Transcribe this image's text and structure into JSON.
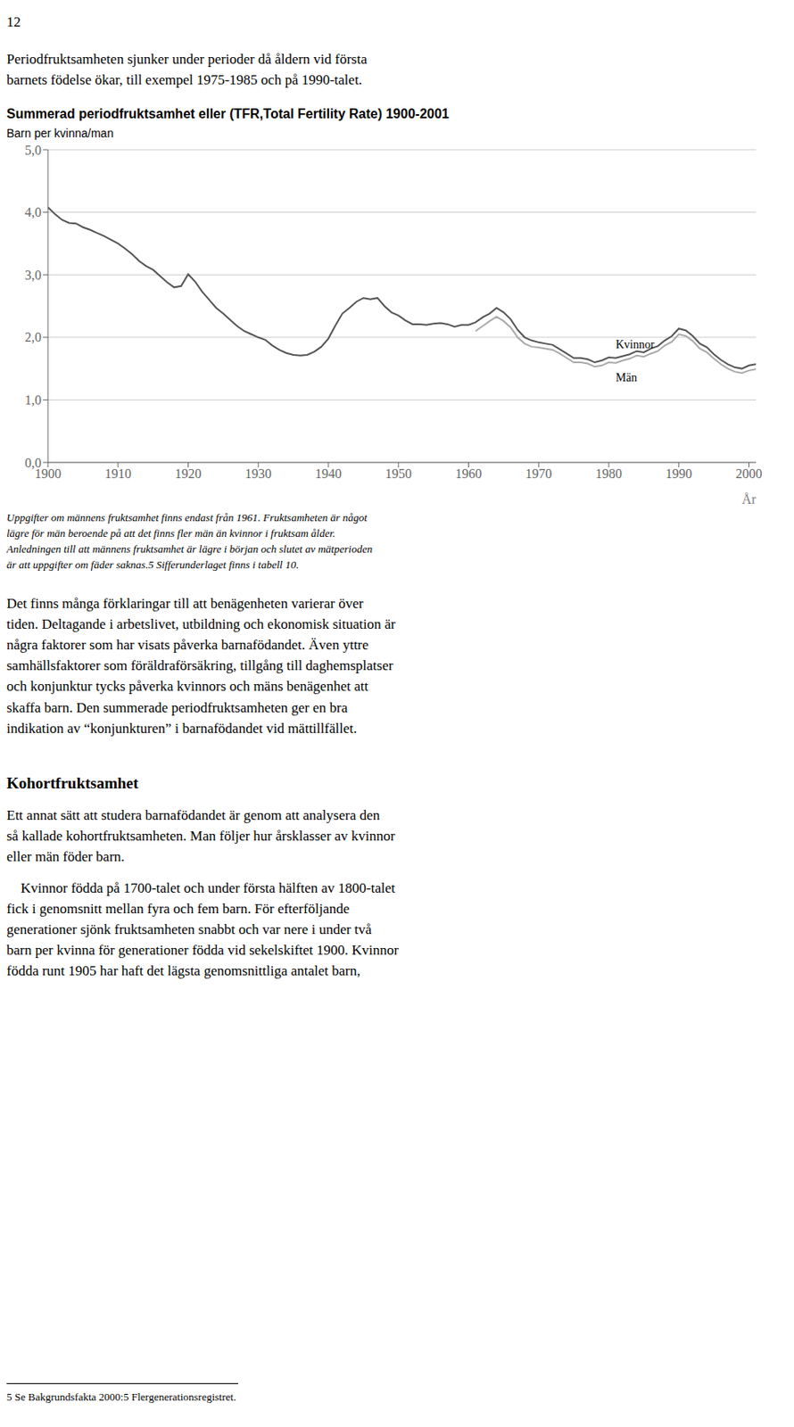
{
  "chart_data": {
    "type": "line",
    "title": "Summerad periodfruktsamhet eller (TFR,Total Fertility Rate) 1900-2001",
    "ylabel": "Barn per kvinna/man",
    "xlabel": "År",
    "x": [
      1900,
      1901,
      1902,
      1903,
      1904,
      1905,
      1906,
      1907,
      1908,
      1909,
      1910,
      1911,
      1912,
      1913,
      1914,
      1915,
      1916,
      1917,
      1918,
      1919,
      1920,
      1921,
      1922,
      1923,
      1924,
      1925,
      1926,
      1927,
      1928,
      1929,
      1930,
      1931,
      1932,
      1933,
      1934,
      1935,
      1936,
      1937,
      1938,
      1939,
      1940,
      1941,
      1942,
      1943,
      1944,
      1945,
      1946,
      1947,
      1948,
      1949,
      1950,
      1951,
      1952,
      1953,
      1954,
      1955,
      1956,
      1957,
      1958,
      1959,
      1960,
      1961,
      1962,
      1963,
      1964,
      1965,
      1966,
      1967,
      1968,
      1969,
      1970,
      1971,
      1972,
      1973,
      1974,
      1975,
      1976,
      1977,
      1978,
      1979,
      1980,
      1981,
      1982,
      1983,
      1984,
      1985,
      1986,
      1987,
      1988,
      1989,
      1990,
      1991,
      1992,
      1993,
      1994,
      1995,
      1996,
      1997,
      1998,
      1999,
      2000,
      2001
    ],
    "series": [
      {
        "name": "Kvinnor",
        "color": "#555555",
        "values": [
          4.08,
          3.97,
          3.88,
          3.83,
          3.82,
          3.76,
          3.72,
          3.67,
          3.62,
          3.56,
          3.5,
          3.42,
          3.33,
          3.22,
          3.14,
          3.08,
          2.98,
          2.88,
          2.8,
          2.82,
          3.01,
          2.89,
          2.73,
          2.6,
          2.47,
          2.38,
          2.28,
          2.18,
          2.1,
          2.05,
          2.0,
          1.96,
          1.87,
          1.8,
          1.75,
          1.72,
          1.71,
          1.72,
          1.77,
          1.85,
          1.98,
          2.19,
          2.38,
          2.47,
          2.57,
          2.63,
          2.61,
          2.63,
          2.5,
          2.4,
          2.35,
          2.27,
          2.21,
          2.21,
          2.2,
          2.22,
          2.23,
          2.21,
          2.17,
          2.2,
          2.2,
          2.24,
          2.32,
          2.38,
          2.47,
          2.4,
          2.29,
          2.12,
          2.0,
          1.95,
          1.92,
          1.9,
          1.88,
          1.81,
          1.74,
          1.67,
          1.67,
          1.65,
          1.6,
          1.63,
          1.68,
          1.67,
          1.7,
          1.73,
          1.78,
          1.76,
          1.82,
          1.86,
          1.95,
          2.02,
          2.14,
          2.11,
          2.02,
          1.9,
          1.84,
          1.73,
          1.64,
          1.57,
          1.52,
          1.5,
          1.55,
          1.57
        ]
      },
      {
        "name": "Män",
        "color": "#aaaaaa",
        "values": [
          null,
          null,
          null,
          null,
          null,
          null,
          null,
          null,
          null,
          null,
          null,
          null,
          null,
          null,
          null,
          null,
          null,
          null,
          null,
          null,
          null,
          null,
          null,
          null,
          null,
          null,
          null,
          null,
          null,
          null,
          null,
          null,
          null,
          null,
          null,
          null,
          null,
          null,
          null,
          null,
          null,
          null,
          null,
          null,
          null,
          null,
          null,
          null,
          null,
          null,
          null,
          null,
          null,
          null,
          null,
          null,
          null,
          null,
          null,
          null,
          null,
          2.1,
          2.18,
          2.26,
          2.33,
          2.26,
          2.16,
          2.0,
          1.9,
          1.85,
          1.84,
          1.82,
          1.8,
          1.74,
          1.67,
          1.6,
          1.6,
          1.58,
          1.53,
          1.55,
          1.6,
          1.59,
          1.63,
          1.66,
          1.71,
          1.69,
          1.74,
          1.78,
          1.87,
          1.93,
          2.05,
          2.02,
          1.94,
          1.82,
          1.76,
          1.66,
          1.57,
          1.5,
          1.45,
          1.43,
          1.47,
          1.49
        ]
      }
    ],
    "xlim": [
      1900,
      2001
    ],
    "xticks": [
      1900,
      1910,
      1920,
      1930,
      1940,
      1950,
      1960,
      1970,
      1980,
      1990,
      2000
    ],
    "ylim": [
      0,
      5
    ],
    "yticks": [
      {
        "value": 0,
        "label": "0,0"
      },
      {
        "value": 1,
        "label": "1,0"
      },
      {
        "value": 2,
        "label": "2,0"
      },
      {
        "value": 3,
        "label": "3,0"
      },
      {
        "value": 4,
        "label": "4,0"
      },
      {
        "value": 5,
        "label": "5,0"
      }
    ],
    "grid": true,
    "annotations": [
      "12",
      "Periodfruktsamheten sjunker under perioder då åldern vid första\nbarnets födelse ökar, till exempel 1975-1985 och på 1990-talet.",
      "Uppgifter om männens fruktsamhet finns endast från 1961. Fruktsamheten är något\nlägre för män beroende på att det finns fler män än kvinnor i fruktsam ålder.\nAnledningen till att männens fruktsamhet är lägre i början och slutet av mätperioden\när att uppgifter om fäder saknas.5 Sifferunderlaget finns i tabell 10.",
      "Det finns många förklaringar till att benägenheten varierar över\ntiden. Deltagande i arbetslivet, utbildning och ekonomisk situation är\nnågra faktorer som har visats påverka barnafödandet. Även yttre\nsamhällsfaktorer som föräldraförsäkring, tillgång till daghemsplatser\noch konjunktur tycks påverka kvinnors och mäns benägenhet att\nskaffa barn. Den summerade periodfruktsamheten ger en bra\nindikation av “konjunkturen” i barnafödandet vid mättillfället.",
      "Kohortfruktsamhet",
      "Ett annat sätt att studera barnafödandet är genom att analysera den\nså kallade kohortfruktsamheten. Man följer hur årsklasser av kvinnor\neller män föder barn.",
      "    Kvinnor födda på 1700-talet och under första hälften av 1800-talet\nfick i genomsnitt mellan fyra och fem barn. För efterföljande\ngenerationer sjönk fruktsamheten snabbt och var nere i under två\nbarn per kvinna för generationer födda vid sekelskiftet 1900. Kvinnor\nfödda runt 1905 har haft det lägsta genomsnittliga antalet barn,",
      "5 Se Bakgrundsfakta 2000:5 Flergenerationsregistret."
    ]
  }
}
